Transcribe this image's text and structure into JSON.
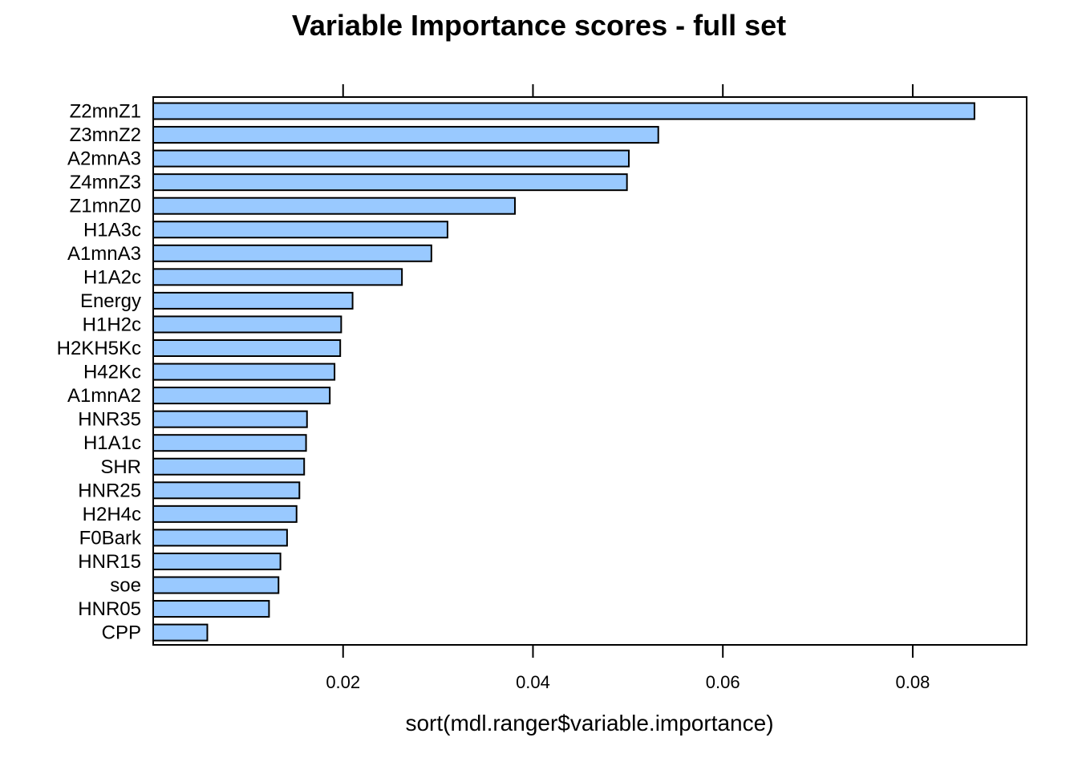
{
  "chart_data": {
    "type": "bar",
    "orientation": "horizontal",
    "title": "Variable Importance scores - full set",
    "xlabel": "sort(mdl.ranger$variable.importance)",
    "ylabel": "",
    "xlim": [
      0.0,
      0.092
    ],
    "x_ticks": [
      {
        "value": 0.02,
        "label": "0.02"
      },
      {
        "value": 0.04,
        "label": "0.04"
      },
      {
        "value": 0.06,
        "label": "0.06"
      },
      {
        "value": 0.08,
        "label": "0.08"
      }
    ],
    "grid": false,
    "legend": "none",
    "bar_color": "#99C9FF",
    "bar_stroke": "#000000",
    "categories": [
      "Z2mnZ1",
      "Z3mnZ2",
      "A2mnA3",
      "Z4mnZ3",
      "Z1mnZ0",
      "H1A3c",
      "A1mnA3",
      "H1A2c",
      "Energy",
      "H1H2c",
      "H2KH5Kc",
      "H42Kc",
      "A1mnA2",
      "HNR35",
      "H1A1c",
      "SHR",
      "HNR25",
      "H2H4c",
      "F0Bark",
      "HNR15",
      "soe",
      "HNR05",
      "CPP"
    ],
    "values": [
      0.0865,
      0.0532,
      0.0501,
      0.0499,
      0.0381,
      0.031,
      0.0293,
      0.0262,
      0.021,
      0.0198,
      0.0197,
      0.0191,
      0.0186,
      0.0162,
      0.0161,
      0.0159,
      0.0154,
      0.0151,
      0.0141,
      0.0134,
      0.0132,
      0.0122,
      0.0057
    ]
  }
}
